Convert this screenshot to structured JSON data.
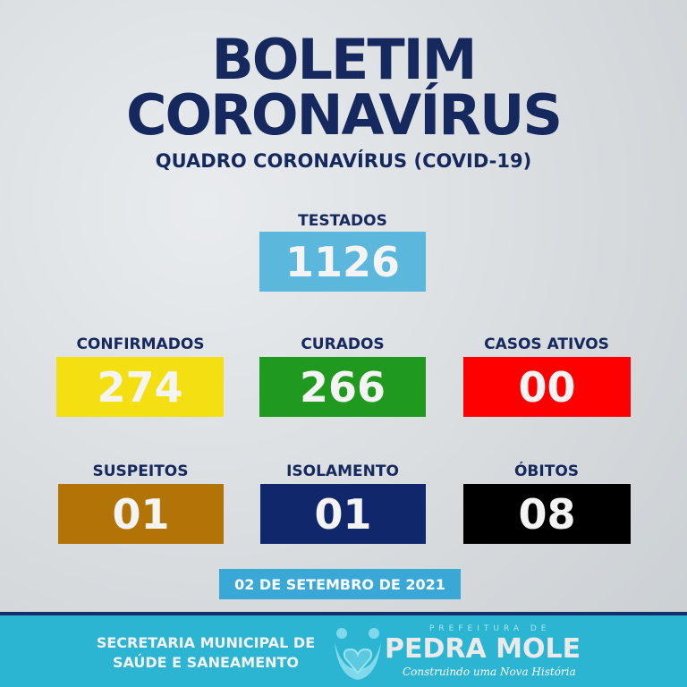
{
  "header": {
    "title_line1": "BOLETIM",
    "title_line2": "CORONAVÍRUS",
    "subtitle": "QUADRO CORONAVÍRUS (COVID-19)"
  },
  "stats": [
    {
      "label": "TESTADOS",
      "value": "1126",
      "color": "#5bb8dc"
    },
    {
      "label": "CONFIRMADOS",
      "value": "274",
      "color": "#f3df12"
    },
    {
      "label": "CURADOS",
      "value": "266",
      "color": "#1f9a1f"
    },
    {
      "label": "CASOS ATIVOS",
      "value": "00",
      "color": "#fe0000"
    },
    {
      "label": "SUSPEITOS",
      "value": "01",
      "color": "#b27407"
    },
    {
      "label": "ISOLAMENTO",
      "value": "01",
      "color": "#10286b"
    },
    {
      "label": "ÓBITOS",
      "value": "08",
      "color": "#000000"
    }
  ],
  "date": "02 DE SETEMBRO DE 2021",
  "footer": {
    "secretaria_line1": "SECRETARIA MUNICIPAL DE",
    "secretaria_line2": "SAÚDE E SANEAMENTO",
    "logo_prefix": "PREFEITURA DE",
    "logo_name": "PEDRA MOLE",
    "logo_slogan": "Construindo uma Nova História"
  }
}
